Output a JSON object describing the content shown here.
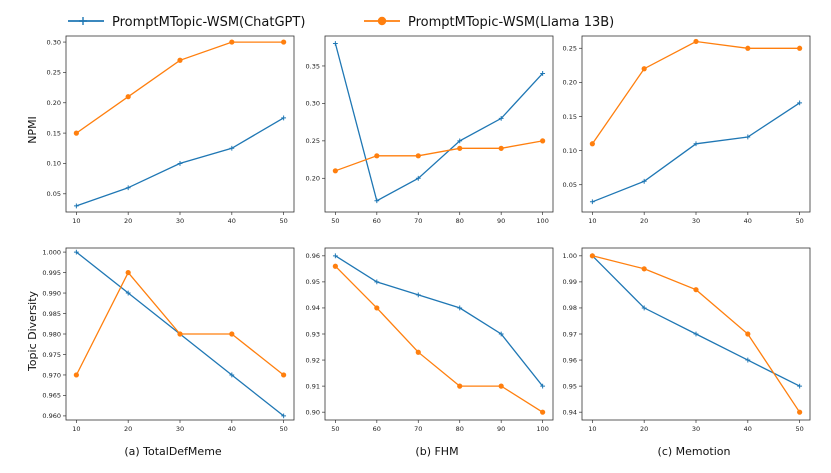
{
  "colors": {
    "chatgpt": "#1f77b4",
    "llama": "#ff7f0e"
  },
  "legend": [
    {
      "label": "PromptMTopic-WSM(ChatGPT)",
      "color": "#1f77b4",
      "marker": "plus"
    },
    {
      "label": "PromptMTopic-WSM(Llama 13B)",
      "color": "#ff7f0e",
      "marker": "circle"
    }
  ],
  "row_labels": [
    "NPMI",
    "Topic Diversity"
  ],
  "captions": [
    "(a) TotalDefMeme",
    "(b) FHM",
    "(c) Memotion"
  ],
  "chart_data": [
    {
      "type": "line",
      "row": 0,
      "col": 0,
      "ylabel": "NPMI",
      "caption": "(a) TotalDefMeme",
      "x": [
        10,
        20,
        30,
        40,
        50
      ],
      "xlim": [
        8,
        52
      ],
      "ylim": [
        0.02,
        0.31
      ],
      "yticks": [
        0.05,
        0.1,
        0.15,
        0.2,
        0.25,
        0.3
      ],
      "ytick_labels": [
        "0.05",
        "0.10",
        "0.15",
        "0.20",
        "0.25",
        "0.30"
      ],
      "xtick_labels": [
        "10",
        "20",
        "30",
        "40",
        "50"
      ],
      "series": [
        {
          "name": "PromptMTopic-WSM(ChatGPT)",
          "values": [
            0.03,
            0.06,
            0.1,
            0.125,
            0.175
          ]
        },
        {
          "name": "PromptMTopic-WSM(Llama 13B)",
          "values": [
            0.15,
            0.21,
            0.27,
            0.3,
            0.3
          ]
        }
      ]
    },
    {
      "type": "line",
      "row": 0,
      "col": 1,
      "ylabel": "",
      "caption": "(b) FHM",
      "x": [
        50,
        60,
        70,
        80,
        90,
        100
      ],
      "xlim": [
        47.5,
        102.5
      ],
      "ylim": [
        0.155,
        0.39
      ],
      "yticks": [
        0.2,
        0.25,
        0.3,
        0.35
      ],
      "ytick_labels": [
        "0.20",
        "0.25",
        "0.30",
        "0.35"
      ],
      "xtick_labels": [
        "50",
        "60",
        "70",
        "80",
        "90",
        "100"
      ],
      "series": [
        {
          "name": "PromptMTopic-WSM(ChatGPT)",
          "values": [
            0.38,
            0.17,
            0.2,
            0.25,
            0.28,
            0.34
          ]
        },
        {
          "name": "PromptMTopic-WSM(Llama 13B)",
          "values": [
            0.21,
            0.23,
            0.23,
            0.24,
            0.24,
            0.25
          ]
        }
      ]
    },
    {
      "type": "line",
      "row": 0,
      "col": 2,
      "ylabel": "",
      "caption": "(c) Memotion",
      "x": [
        10,
        20,
        30,
        40,
        50
      ],
      "xlim": [
        8,
        52
      ],
      "ylim": [
        0.01,
        0.268
      ],
      "yticks": [
        0.05,
        0.1,
        0.15,
        0.2,
        0.25
      ],
      "ytick_labels": [
        "0.05",
        "0.10",
        "0.15",
        "0.20",
        "0.25"
      ],
      "xtick_labels": [
        "10",
        "20",
        "30",
        "40",
        "50"
      ],
      "series": [
        {
          "name": "PromptMTopic-WSM(ChatGPT)",
          "values": [
            0.025,
            0.055,
            0.11,
            0.12,
            0.17
          ]
        },
        {
          "name": "PromptMTopic-WSM(Llama 13B)",
          "values": [
            0.11,
            0.22,
            0.26,
            0.25,
            0.25
          ]
        }
      ]
    },
    {
      "type": "line",
      "row": 1,
      "col": 0,
      "ylabel": "Topic Diversity",
      "caption": "(a) TotalDefMeme",
      "x": [
        10,
        20,
        30,
        40,
        50
      ],
      "xlim": [
        8,
        52
      ],
      "ylim": [
        0.959,
        1.001
      ],
      "yticks": [
        0.96,
        0.965,
        0.97,
        0.975,
        0.98,
        0.985,
        0.99,
        0.995,
        1.0
      ],
      "ytick_labels": [
        "0.960",
        "0.965",
        "0.970",
        "0.975",
        "0.980",
        "0.985",
        "0.990",
        "0.995",
        "1.000"
      ],
      "xtick_labels": [
        "10",
        "20",
        "30",
        "40",
        "50"
      ],
      "series": [
        {
          "name": "PromptMTopic-WSM(ChatGPT)",
          "values": [
            1.0,
            0.99,
            0.98,
            0.97,
            0.96
          ]
        },
        {
          "name": "PromptMTopic-WSM(Llama 13B)",
          "values": [
            0.97,
            0.995,
            0.98,
            0.98,
            0.97
          ]
        }
      ]
    },
    {
      "type": "line",
      "row": 1,
      "col": 1,
      "ylabel": "",
      "caption": "(b) FHM",
      "x": [
        50,
        60,
        70,
        80,
        90,
        100
      ],
      "xlim": [
        47.5,
        102.5
      ],
      "ylim": [
        0.897,
        0.963
      ],
      "yticks": [
        0.9,
        0.91,
        0.92,
        0.93,
        0.94,
        0.95,
        0.96
      ],
      "ytick_labels": [
        "0.90",
        "0.91",
        "0.92",
        "0.93",
        "0.94",
        "0.95",
        "0.96"
      ],
      "xtick_labels": [
        "50",
        "60",
        "70",
        "80",
        "90",
        "100"
      ],
      "series": [
        {
          "name": "PromptMTopic-WSM(ChatGPT)",
          "values": [
            0.96,
            0.95,
            0.945,
            0.94,
            0.93,
            0.91
          ]
        },
        {
          "name": "PromptMTopic-WSM(Llama 13B)",
          "values": [
            0.956,
            0.94,
            0.923,
            0.91,
            0.91,
            0.9
          ]
        }
      ]
    },
    {
      "type": "line",
      "row": 1,
      "col": 2,
      "ylabel": "",
      "caption": "(c) Memotion",
      "x": [
        10,
        20,
        30,
        40,
        50
      ],
      "xlim": [
        8,
        52
      ],
      "ylim": [
        0.937,
        1.003
      ],
      "yticks": [
        0.94,
        0.95,
        0.96,
        0.97,
        0.98,
        0.99,
        1.0
      ],
      "ytick_labels": [
        "0.94",
        "0.95",
        "0.96",
        "0.97",
        "0.98",
        "0.99",
        "1.00"
      ],
      "xtick_labels": [
        "10",
        "20",
        "30",
        "40",
        "50"
      ],
      "series": [
        {
          "name": "PromptMTopic-WSM(ChatGPT)",
          "values": [
            1.0,
            0.98,
            0.97,
            0.96,
            0.95
          ]
        },
        {
          "name": "PromptMTopic-WSM(Llama 13B)",
          "values": [
            1.0,
            0.995,
            0.987,
            0.97,
            0.94
          ]
        }
      ]
    }
  ]
}
